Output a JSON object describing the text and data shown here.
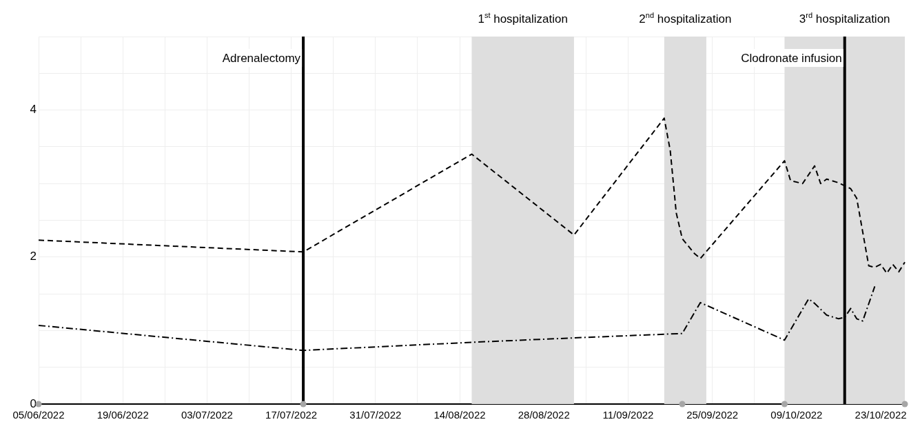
{
  "chart_data": {
    "type": "line",
    "xlim": [
      "2022-06-05",
      "2022-10-27"
    ],
    "xticks": [
      {
        "value": "2022-06-05",
        "label": "05/06/2022"
      },
      {
        "value": "2022-06-12",
        "label": null
      },
      {
        "value": "2022-06-19",
        "label": "19/06/2022"
      },
      {
        "value": "2022-06-26",
        "label": null
      },
      {
        "value": "2022-07-03",
        "label": "03/07/2022"
      },
      {
        "value": "2022-07-10",
        "label": null
      },
      {
        "value": "2022-07-17",
        "label": "17/07/2022"
      },
      {
        "value": "2022-07-24",
        "label": null
      },
      {
        "value": "2022-07-31",
        "label": "31/07/2022"
      },
      {
        "value": "2022-08-07",
        "label": null
      },
      {
        "value": "2022-08-14",
        "label": "14/08/2022"
      },
      {
        "value": "2022-08-28",
        "label": "28/08/2022"
      },
      {
        "value": "2022-09-04",
        "label": null
      },
      {
        "value": "2022-09-11",
        "label": "11/09/2022"
      },
      {
        "value": "2022-09-25",
        "label": "25/09/2022"
      },
      {
        "value": "2022-10-02",
        "label": null
      },
      {
        "value": "2022-10-09",
        "label": "09/10/2022"
      },
      {
        "value": "2022-10-23",
        "label": "23/10/2022"
      }
    ],
    "ylim": [
      0,
      5
    ],
    "yticks": [
      0,
      {
        "value": 0.5,
        "label": null
      },
      {
        "value": 1,
        "label": null
      },
      {
        "value": 1.5,
        "label": null
      },
      2,
      {
        "value": 2.5,
        "label": null
      },
      {
        "value": 3,
        "label": null
      },
      {
        "value": 3.5,
        "label": null
      },
      4,
      {
        "value": 4.5,
        "label": null
      },
      {
        "value": 5,
        "label": null
      }
    ],
    "grid": true,
    "legend": false,
    "series": [
      {
        "type": "line",
        "color": "#000000",
        "line_style": "dashed",
        "marker": "none",
        "x": [
          "2022-06-05",
          "2022-07-19",
          "2022-08-16",
          "2022-09-02",
          "2022-09-17",
          "2022-09-18",
          "2022-09-19",
          "2022-09-20",
          "2022-09-22",
          "2022-09-23",
          "2022-10-07",
          "2022-10-08",
          "2022-10-10",
          "2022-10-12",
          "2022-10-13",
          "2022-10-14",
          "2022-10-16",
          "2022-10-18",
          "2022-10-19",
          "2022-10-21",
          "2022-10-22",
          "2022-10-23",
          "2022-10-24",
          "2022-10-25",
          "2022-10-26",
          "2022-10-27"
        ],
        "values": [
          2.23,
          2.07,
          3.4,
          2.3,
          3.89,
          3.45,
          2.6,
          2.25,
          2.05,
          1.98,
          3.31,
          3.04,
          3.0,
          3.24,
          3.0,
          3.06,
          3.01,
          2.93,
          2.8,
          1.88,
          1.86,
          1.9,
          1.78,
          1.9,
          1.8,
          1.93
        ]
      },
      {
        "type": "line",
        "color": "#000000",
        "line_style": "dashdot",
        "marker": "none",
        "x": [
          "2022-06-05",
          "2022-07-19",
          "2022-08-16",
          "2022-09-02",
          "2022-09-17",
          "2022-09-20",
          "2022-09-23",
          "2022-10-07",
          "2022-10-11",
          "2022-10-12",
          "2022-10-14",
          "2022-10-16",
          "2022-10-17",
          "2022-10-18",
          "2022-10-19",
          "2022-10-20",
          "2022-10-22"
        ],
        "values": [
          1.07,
          0.73,
          0.84,
          0.9,
          0.95,
          0.96,
          1.38,
          0.87,
          1.43,
          1.37,
          1.21,
          1.16,
          1.18,
          1.3,
          1.16,
          1.13,
          1.6
        ]
      },
      {
        "type": "scatter",
        "color": "#a6a6a6",
        "marker": "circle",
        "x": [
          "2022-06-05",
          "2022-07-19",
          "2022-09-20",
          "2022-10-07",
          "2022-10-27"
        ],
        "values": [
          0,
          0,
          0,
          0,
          0
        ]
      }
    ],
    "ref_lines": [
      {
        "axis": "x",
        "value": "2022-07-19",
        "label": "Adrenalectomy",
        "color": "#000000"
      },
      {
        "axis": "x",
        "value": "2022-10-17",
        "label": "Clodronate infusion",
        "color": "#000000"
      }
    ],
    "bands": [
      {
        "axis": "x",
        "from": "2022-08-16",
        "to": "2022-09-02",
        "label": "1$^{st}$ hospitalization",
        "color": "#dedede"
      },
      {
        "axis": "x",
        "from": "2022-09-17",
        "to": "2022-09-24",
        "label": "2$^{nd}$ hospitalization",
        "color": "#dedede"
      },
      {
        "axis": "x",
        "from": "2022-10-07",
        "to": "2022-10-27",
        "label": "3$^{rd}$ hospitalization",
        "color": "#dedede"
      }
    ]
  }
}
